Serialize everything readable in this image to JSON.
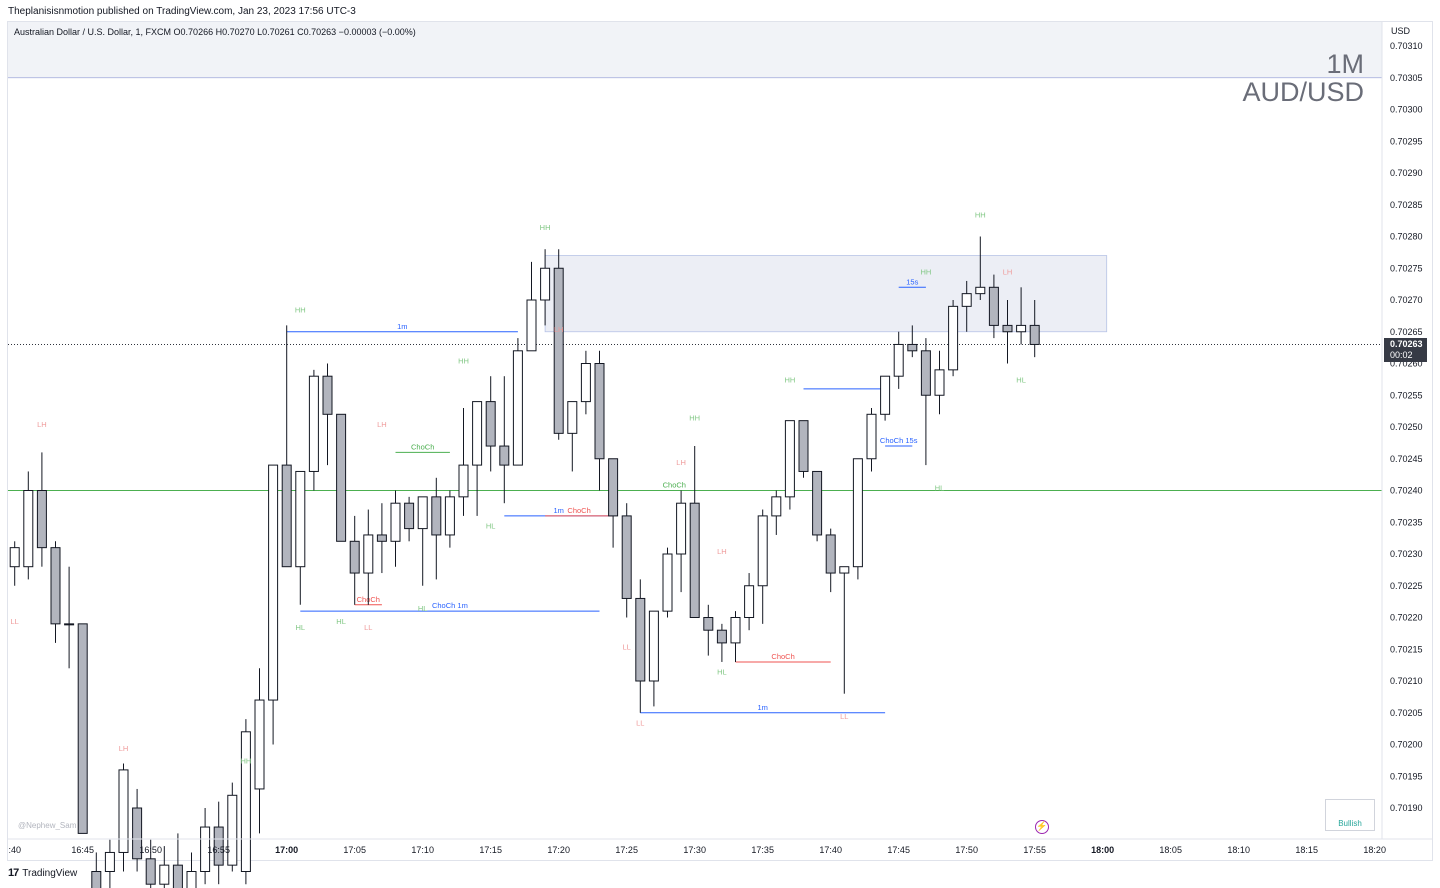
{
  "header": {
    "publisher": "Theplanisisnmotion published on TradingView.com, Jan 23, 2023 17:56 UTC-3",
    "legend": "Australian Dollar / U.S. Dollar, 1, FXCM  O0.70266  H0.70270  L0.70261  C0.70263  −0.00003 (−0.00%)"
  },
  "watermark": {
    "line1": "1M",
    "line2": "AUD/USD"
  },
  "price_axis": {
    "currency": "USD",
    "last_price": "0.70263",
    "countdown": "00:02"
  },
  "footer": {
    "logo": "TradingView"
  },
  "widgets": {
    "bullish": "Bullish",
    "author": "@Nephew_Sam"
  },
  "colors": {
    "up": "#ffffff",
    "down": "#b2b5be",
    "border": "#131722",
    "bull": "#26a69a",
    "bear": "#ef5350",
    "choch_blue": "#2962ff",
    "zone": "#e7eaf3"
  },
  "chart_data": {
    "type": "candlestick",
    "symbol": "AUD/USD",
    "timeframe": "1",
    "ylim": [
      0.70185,
      0.70315
    ],
    "y_ticks": [
      "0.70310",
      "0.70305",
      "0.70300",
      "0.70295",
      "0.70290",
      "0.70285",
      "0.70280",
      "0.70275",
      "0.70270",
      "0.70265",
      "0.70260",
      "0.70255",
      "0.70250",
      "0.70245",
      "0.70240",
      "0.70235",
      "0.70230",
      "0.70225",
      "0.70220",
      "0.70215",
      "0.70210",
      "0.70205",
      "0.70200",
      "0.70195",
      "0.70190"
    ],
    "x_ticks": [
      ":40",
      "16:45",
      "16:50",
      "16:55",
      "17:00",
      "17:05",
      "17:10",
      "17:15",
      "17:20",
      "17:25",
      "17:30",
      "17:35",
      "17:40",
      "17:45",
      "17:50",
      "17:55",
      "18:00",
      "18:05",
      "18:10",
      "18:15",
      "18:20"
    ],
    "candles": [
      {
        "t": "16:40",
        "o": 0.70228,
        "h": 0.70232,
        "l": 0.70225,
        "c": 0.70231
      },
      {
        "t": "16:41",
        "o": 0.70228,
        "h": 0.70243,
        "l": 0.70226,
        "c": 0.7024
      },
      {
        "t": "16:42",
        "o": 0.7024,
        "h": 0.70246,
        "l": 0.70228,
        "c": 0.70231
      },
      {
        "t": "16:43",
        "o": 0.70231,
        "h": 0.70232,
        "l": 0.70216,
        "c": 0.70219
      },
      {
        "t": "16:44",
        "o": 0.70219,
        "h": 0.70228,
        "l": 0.70212,
        "c": 0.70219
      },
      {
        "t": "16:45",
        "o": 0.70219,
        "h": 0.70219,
        "l": 0.70186,
        "c": 0.70186
      },
      {
        "t": "16:46",
        "o": 0.7018,
        "h": 0.70183,
        "l": 0.70174,
        "c": 0.70177
      },
      {
        "t": "16:47",
        "o": 0.7018,
        "h": 0.70185,
        "l": 0.70176,
        "c": 0.70183
      },
      {
        "t": "16:48",
        "o": 0.70183,
        "h": 0.70197,
        "l": 0.7018,
        "c": 0.70196
      },
      {
        "t": "16:49",
        "o": 0.7019,
        "h": 0.70193,
        "l": 0.7018,
        "c": 0.70182
      },
      {
        "t": "16:50",
        "o": 0.70182,
        "h": 0.70185,
        "l": 0.70175,
        "c": 0.70178
      },
      {
        "t": "16:51",
        "o": 0.70178,
        "h": 0.70184,
        "l": 0.70172,
        "c": 0.70181
      },
      {
        "t": "16:52",
        "o": 0.70181,
        "h": 0.70186,
        "l": 0.70174,
        "c": 0.70176
      },
      {
        "t": "16:53",
        "o": 0.70176,
        "h": 0.70183,
        "l": 0.70171,
        "c": 0.7018
      },
      {
        "t": "16:54",
        "o": 0.7018,
        "h": 0.7019,
        "l": 0.70178,
        "c": 0.70187
      },
      {
        "t": "16:55",
        "o": 0.70187,
        "h": 0.70191,
        "l": 0.70178,
        "c": 0.70181
      },
      {
        "t": "16:56",
        "o": 0.70181,
        "h": 0.70194,
        "l": 0.7018,
        "c": 0.70192
      },
      {
        "t": "16:57",
        "o": 0.7018,
        "h": 0.70204,
        "l": 0.70178,
        "c": 0.70202
      },
      {
        "t": "16:58",
        "o": 0.70193,
        "h": 0.70212,
        "l": 0.70186,
        "c": 0.70207
      },
      {
        "t": "16:59",
        "o": 0.70207,
        "h": 0.70244,
        "l": 0.702,
        "c": 0.70244
      },
      {
        "t": "17:00",
        "o": 0.70244,
        "h": 0.70266,
        "l": 0.70228,
        "c": 0.70228
      },
      {
        "t": "17:01",
        "o": 0.70228,
        "h": 0.70243,
        "l": 0.70222,
        "c": 0.70243
      },
      {
        "t": "17:02",
        "o": 0.70243,
        "h": 0.70259,
        "l": 0.7024,
        "c": 0.70258
      },
      {
        "t": "17:03",
        "o": 0.70258,
        "h": 0.7026,
        "l": 0.70244,
        "c": 0.70252
      },
      {
        "t": "17:04",
        "o": 0.70252,
        "h": 0.70252,
        "l": 0.70232,
        "c": 0.70232
      },
      {
        "t": "17:05",
        "o": 0.70232,
        "h": 0.70236,
        "l": 0.70222,
        "c": 0.70227
      },
      {
        "t": "17:06",
        "o": 0.70227,
        "h": 0.70237,
        "l": 0.70222,
        "c": 0.70233
      },
      {
        "t": "17:07",
        "o": 0.70233,
        "h": 0.70238,
        "l": 0.70227,
        "c": 0.70232
      },
      {
        "t": "17:08",
        "o": 0.70232,
        "h": 0.7024,
        "l": 0.70228,
        "c": 0.70238
      },
      {
        "t": "17:09",
        "o": 0.70238,
        "h": 0.70239,
        "l": 0.70232,
        "c": 0.70234
      },
      {
        "t": "17:10",
        "o": 0.70234,
        "h": 0.70238,
        "l": 0.70225,
        "c": 0.70239
      },
      {
        "t": "17:11",
        "o": 0.70239,
        "h": 0.70242,
        "l": 0.70226,
        "c": 0.70233
      },
      {
        "t": "17:12",
        "o": 0.70233,
        "h": 0.7024,
        "l": 0.70231,
        "c": 0.70239
      },
      {
        "t": "17:13",
        "o": 0.70239,
        "h": 0.70253,
        "l": 0.70236,
        "c": 0.70244
      },
      {
        "t": "17:14",
        "o": 0.70244,
        "h": 0.70254,
        "l": 0.70236,
        "c": 0.70254
      },
      {
        "t": "17:15",
        "o": 0.70254,
        "h": 0.70258,
        "l": 0.70243,
        "c": 0.70247
      },
      {
        "t": "17:16",
        "o": 0.70247,
        "h": 0.70258,
        "l": 0.70238,
        "c": 0.70244
      },
      {
        "t": "17:17",
        "o": 0.70244,
        "h": 0.70264,
        "l": 0.70244,
        "c": 0.70262
      },
      {
        "t": "17:18",
        "o": 0.70262,
        "h": 0.70276,
        "l": 0.70262,
        "c": 0.7027
      },
      {
        "t": "17:19",
        "o": 0.7027,
        "h": 0.70278,
        "l": 0.70266,
        "c": 0.70275
      },
      {
        "t": "17:20",
        "o": 0.70275,
        "h": 0.70278,
        "l": 0.70248,
        "c": 0.70249
      },
      {
        "t": "17:21",
        "o": 0.70249,
        "h": 0.70254,
        "l": 0.70243,
        "c": 0.70254
      },
      {
        "t": "17:22",
        "o": 0.70254,
        "h": 0.70262,
        "l": 0.70252,
        "c": 0.7026
      },
      {
        "t": "17:23",
        "o": 0.7026,
        "h": 0.70262,
        "l": 0.7024,
        "c": 0.70245
      },
      {
        "t": "17:24",
        "o": 0.70245,
        "h": 0.70245,
        "l": 0.70231,
        "c": 0.70236
      },
      {
        "t": "17:25",
        "o": 0.70236,
        "h": 0.70238,
        "l": 0.7022,
        "c": 0.70223
      },
      {
        "t": "17:26",
        "o": 0.70223,
        "h": 0.70226,
        "l": 0.70205,
        "c": 0.7021
      },
      {
        "t": "17:27",
        "o": 0.7021,
        "h": 0.70221,
        "l": 0.70206,
        "c": 0.70221
      },
      {
        "t": "17:28",
        "o": 0.70221,
        "h": 0.70231,
        "l": 0.7022,
        "c": 0.7023
      },
      {
        "t": "17:29",
        "o": 0.7023,
        "h": 0.7024,
        "l": 0.70224,
        "c": 0.70238
      },
      {
        "t": "17:30",
        "o": 0.70238,
        "h": 0.70247,
        "l": 0.7022,
        "c": 0.7022
      },
      {
        "t": "17:31",
        "o": 0.7022,
        "h": 0.70222,
        "l": 0.70214,
        "c": 0.70218
      },
      {
        "t": "17:32",
        "o": 0.70218,
        "h": 0.70219,
        "l": 0.70213,
        "c": 0.70216
      },
      {
        "t": "17:33",
        "o": 0.70216,
        "h": 0.70221,
        "l": 0.70213,
        "c": 0.7022
      },
      {
        "t": "17:34",
        "o": 0.7022,
        "h": 0.70227,
        "l": 0.70218,
        "c": 0.70225
      },
      {
        "t": "17:35",
        "o": 0.70225,
        "h": 0.70237,
        "l": 0.70219,
        "c": 0.70236
      },
      {
        "t": "17:36",
        "o": 0.70236,
        "h": 0.7024,
        "l": 0.70233,
        "c": 0.70239
      },
      {
        "t": "17:37",
        "o": 0.70239,
        "h": 0.70251,
        "l": 0.70237,
        "c": 0.70251
      },
      {
        "t": "17:38",
        "o": 0.70251,
        "h": 0.70251,
        "l": 0.70242,
        "c": 0.70243
      },
      {
        "t": "17:39",
        "o": 0.70243,
        "h": 0.70243,
        "l": 0.70232,
        "c": 0.70233
      },
      {
        "t": "17:40",
        "o": 0.70233,
        "h": 0.70234,
        "l": 0.70224,
        "c": 0.70227
      },
      {
        "t": "17:41",
        "o": 0.70227,
        "h": 0.70228,
        "l": 0.70208,
        "c": 0.70228
      },
      {
        "t": "17:42",
        "o": 0.70228,
        "h": 0.70245,
        "l": 0.70226,
        "c": 0.70245
      },
      {
        "t": "17:43",
        "o": 0.70245,
        "h": 0.70253,
        "l": 0.70243,
        "c": 0.70252
      },
      {
        "t": "17:44",
        "o": 0.70252,
        "h": 0.70258,
        "l": 0.70251,
        "c": 0.70258
      },
      {
        "t": "17:45",
        "o": 0.70258,
        "h": 0.70265,
        "l": 0.70256,
        "c": 0.70263
      },
      {
        "t": "17:46",
        "o": 0.70263,
        "h": 0.70266,
        "l": 0.70261,
        "c": 0.70262
      },
      {
        "t": "17:47",
        "o": 0.70262,
        "h": 0.70264,
        "l": 0.70244,
        "c": 0.70255
      },
      {
        "t": "17:48",
        "o": 0.70255,
        "h": 0.70262,
        "l": 0.70252,
        "c": 0.70259
      },
      {
        "t": "17:49",
        "o": 0.70259,
        "h": 0.7027,
        "l": 0.70258,
        "c": 0.70269
      },
      {
        "t": "17:50",
        "o": 0.70269,
        "h": 0.70273,
        "l": 0.70265,
        "c": 0.70271
      },
      {
        "t": "17:51",
        "o": 0.70271,
        "h": 0.7028,
        "l": 0.7027,
        "c": 0.70272
      },
      {
        "t": "17:52",
        "o": 0.70272,
        "h": 0.70274,
        "l": 0.70264,
        "c": 0.70266
      },
      {
        "t": "17:53",
        "o": 0.70266,
        "h": 0.7027,
        "l": 0.7026,
        "c": 0.70265
      },
      {
        "t": "17:54",
        "o": 0.70265,
        "h": 0.70272,
        "l": 0.70263,
        "c": 0.70266
      },
      {
        "t": "17:55",
        "o": 0.70266,
        "h": 0.7027,
        "l": 0.70261,
        "c": 0.70263
      }
    ],
    "horizontal_lines": [
      {
        "price": 0.7024,
        "color": "#4caf50",
        "label": ""
      },
      {
        "price": 0.70263,
        "color": "#131722",
        "style": "dotted",
        "label": "last"
      }
    ],
    "zones": [
      {
        "from": "17:19",
        "to": "18:00",
        "top": 0.70277,
        "bottom": 0.70265,
        "color": "#e7eaf3"
      },
      {
        "from": "16:40",
        "to": "18:20",
        "top": 0.70315,
        "bottom": 0.70305,
        "color": "#eef0f5"
      }
    ],
    "structure_lines": [
      {
        "from": "17:00",
        "to": "17:17",
        "price": 0.70265,
        "color": "#2962ff",
        "label": "1m"
      },
      {
        "from": "17:01",
        "to": "17:23",
        "price": 0.70221,
        "color": "#2962ff",
        "label": "ChoCh 1m"
      },
      {
        "from": "17:05",
        "to": "17:07",
        "price": 0.70222,
        "color": "#ef5350",
        "label": "ChoCh"
      },
      {
        "from": "17:08",
        "to": "17:12",
        "price": 0.70246,
        "color": "#4caf50",
        "label": "ChoCh"
      },
      {
        "from": "17:16",
        "to": "17:24",
        "price": 0.70236,
        "color": "#2962ff",
        "label": "1m"
      },
      {
        "from": "17:19",
        "to": "17:24",
        "price": 0.70236,
        "color": "#ef5350",
        "label": "ChoCh"
      },
      {
        "from": "17:27",
        "to": "17:30",
        "price": 0.7024,
        "color": "#4caf50",
        "label": "ChoCh"
      },
      {
        "from": "17:26",
        "to": "17:44",
        "price": 0.70205,
        "color": "#2962ff",
        "label": "1m"
      },
      {
        "from": "17:33",
        "to": "17:40",
        "price": 0.70213,
        "color": "#ef5350",
        "label": "ChoCh"
      },
      {
        "from": "17:38",
        "to": "17:44",
        "price": 0.70256,
        "color": "#2962ff",
        "label": ""
      },
      {
        "from": "17:44",
        "to": "17:46",
        "price": 0.70247,
        "color": "#2962ff",
        "label": "ChoCh 15s"
      },
      {
        "from": "17:45",
        "to": "17:47",
        "price": 0.70272,
        "color": "#2962ff",
        "label": "15s"
      }
    ],
    "swing_labels": [
      {
        "t": "16:40",
        "price": 0.70219,
        "text": "LL",
        "color": "#ef9a9a"
      },
      {
        "t": "16:42",
        "price": 0.7025,
        "text": "LH",
        "color": "#ef9a9a"
      },
      {
        "t": "16:48",
        "price": 0.70199,
        "text": "LH",
        "color": "#ef9a9a"
      },
      {
        "t": "16:57",
        "price": 0.70197,
        "text": "HH",
        "color": "#81c784"
      },
      {
        "t": "17:01",
        "price": 0.70268,
        "text": "HH",
        "color": "#81c784"
      },
      {
        "t": "17:01",
        "price": 0.70218,
        "text": "HL",
        "color": "#81c784"
      },
      {
        "t": "17:04",
        "price": 0.70219,
        "text": "HL",
        "color": "#81c784"
      },
      {
        "t": "17:06",
        "price": 0.70218,
        "text": "LL",
        "color": "#ef9a9a"
      },
      {
        "t": "17:07",
        "price": 0.7025,
        "text": "LH",
        "color": "#ef9a9a"
      },
      {
        "t": "17:10",
        "price": 0.70221,
        "text": "HL",
        "color": "#81c784"
      },
      {
        "t": "17:13",
        "price": 0.7026,
        "text": "HH",
        "color": "#81c784"
      },
      {
        "t": "17:15",
        "price": 0.70234,
        "text": "HL",
        "color": "#81c784"
      },
      {
        "t": "17:19",
        "price": 0.70281,
        "text": "HH",
        "color": "#81c784"
      },
      {
        "t": "17:20",
        "price": 0.70265,
        "text": "LH",
        "color": "#ef9a9a"
      },
      {
        "t": "17:25",
        "price": 0.70215,
        "text": "LL",
        "color": "#ef9a9a"
      },
      {
        "t": "17:26",
        "price": 0.70203,
        "text": "LL",
        "color": "#ef9a9a"
      },
      {
        "t": "17:29",
        "price": 0.70244,
        "text": "LH",
        "color": "#ef9a9a"
      },
      {
        "t": "17:30",
        "price": 0.70251,
        "text": "HH",
        "color": "#81c784"
      },
      {
        "t": "17:32",
        "price": 0.7023,
        "text": "LH",
        "color": "#ef9a9a"
      },
      {
        "t": "17:32",
        "price": 0.70211,
        "text": "HL",
        "color": "#81c784"
      },
      {
        "t": "17:37",
        "price": 0.70257,
        "text": "HH",
        "color": "#81c784"
      },
      {
        "t": "17:41",
        "price": 0.70204,
        "text": "LL",
        "color": "#ef9a9a"
      },
      {
        "t": "17:47",
        "price": 0.70274,
        "text": "HH",
        "color": "#81c784"
      },
      {
        "t": "17:48",
        "price": 0.7024,
        "text": "HL",
        "color": "#81c784"
      },
      {
        "t": "17:51",
        "price": 0.70283,
        "text": "HH",
        "color": "#81c784"
      },
      {
        "t": "17:53",
        "price": 0.70274,
        "text": "LH",
        "color": "#ef9a9a"
      },
      {
        "t": "17:54",
        "price": 0.70257,
        "text": "HL",
        "color": "#81c784"
      }
    ]
  }
}
